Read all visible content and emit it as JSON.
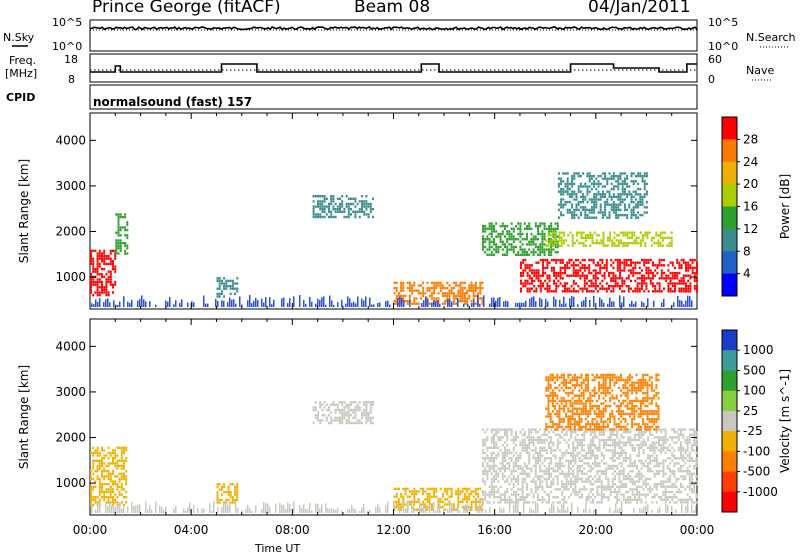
{
  "header": {
    "station": "Prince George (fitACF)",
    "beam": "Beam 08",
    "date": "04/Jan/2011"
  },
  "strip": {
    "nsky_label": "N.Sky",
    "nsearch_label": "N.Search",
    "nsky_ticks": [
      "10^5",
      "10^0"
    ],
    "nsearch_ticks": [
      "10^5",
      "10^0"
    ],
    "freq_label_1": "Freq.",
    "freq_label_2": "[MHz]",
    "freq_ticks": [
      "18",
      "8"
    ],
    "nave_label": "Nave",
    "nave_ticks": [
      "60",
      "0"
    ],
    "cpid_label": "CPID",
    "cpid_value": "normalsound (fast) 157"
  },
  "chart_data": [
    {
      "type": "heatmap",
      "name": "power",
      "ylabel": "Slant Range [km]",
      "ylim": [
        300,
        4600
      ],
      "y_ticks": [
        1000,
        2000,
        3000,
        4000
      ],
      "colorbar_label": "Power [dB]",
      "colorbar_ticks": [
        "28",
        "24",
        "20",
        "16",
        "12",
        "8",
        "4"
      ],
      "colorbar_colors": [
        "#ff0000",
        "#ff7a00",
        "#f0b000",
        "#a8d000",
        "#2ea02e",
        "#3b8c8c",
        "#2060c8",
        "#0000ff"
      ],
      "features": [
        {
          "t_start": 0.0,
          "t_end": 1.0,
          "r_low": 600,
          "r_high": 1600,
          "level": 28
        },
        {
          "t_start": 1.0,
          "t_end": 1.5,
          "r_low": 1500,
          "r_high": 2400,
          "level": 12
        },
        {
          "t_start": 5.0,
          "t_end": 5.8,
          "r_low": 550,
          "r_high": 1000,
          "level": 8
        },
        {
          "t_start": 8.8,
          "t_end": 11.2,
          "r_low": 2300,
          "r_high": 2800,
          "level": 8
        },
        {
          "t_start": 12.0,
          "t_end": 15.5,
          "r_low": 400,
          "r_high": 900,
          "level": 24
        },
        {
          "t_start": 15.5,
          "t_end": 18.5,
          "r_low": 1500,
          "r_high": 2200,
          "level": 12
        },
        {
          "t_start": 17.0,
          "t_end": 24.0,
          "r_low": 700,
          "r_high": 1400,
          "level": 28
        },
        {
          "t_start": 18.0,
          "t_end": 23.0,
          "r_low": 1700,
          "r_high": 2000,
          "level": 16
        },
        {
          "t_start": 18.5,
          "t_end": 22.0,
          "r_low": 2300,
          "r_high": 3300,
          "level": 8
        }
      ]
    },
    {
      "type": "heatmap",
      "name": "velocity",
      "ylabel": "Slant Range [km]",
      "xlabel": "Time UT",
      "ylim": [
        300,
        4600
      ],
      "y_ticks": [
        1000,
        2000,
        3000,
        4000
      ],
      "x_ticks": [
        "00:00",
        "04:00",
        "08:00",
        "12:00",
        "16:00",
        "20:00",
        "00:00"
      ],
      "colorbar_label": "Velocity [m s^-1]",
      "colorbar_ticks": [
        "1000",
        "500",
        "100",
        "25",
        "-25",
        "-100",
        "-500",
        "-1000"
      ],
      "colorbar_colors": [
        "#1a3cc8",
        "#3f9a9a",
        "#2ea02e",
        "#84d040",
        "#c8c8c0",
        "#f0b000",
        "#ff8000",
        "#ff4000",
        "#ff0000"
      ],
      "features": [
        {
          "t_start": 0.0,
          "t_end": 1.4,
          "r_low": 500,
          "r_high": 1800,
          "v": -100
        },
        {
          "t_start": 5.0,
          "t_end": 5.8,
          "r_low": 550,
          "r_high": 1000,
          "v": -100
        },
        {
          "t_start": 8.8,
          "t_end": 11.2,
          "r_low": 2300,
          "r_high": 2800,
          "v": 0
        },
        {
          "t_start": 12.0,
          "t_end": 15.5,
          "r_low": 400,
          "r_high": 900,
          "v": -100
        },
        {
          "t_start": 15.5,
          "t_end": 24.0,
          "r_low": 600,
          "r_high": 2200,
          "v": 0
        },
        {
          "t_start": 18.0,
          "t_end": 22.5,
          "r_low": 2200,
          "r_high": 3400,
          "v": -500
        }
      ]
    }
  ]
}
